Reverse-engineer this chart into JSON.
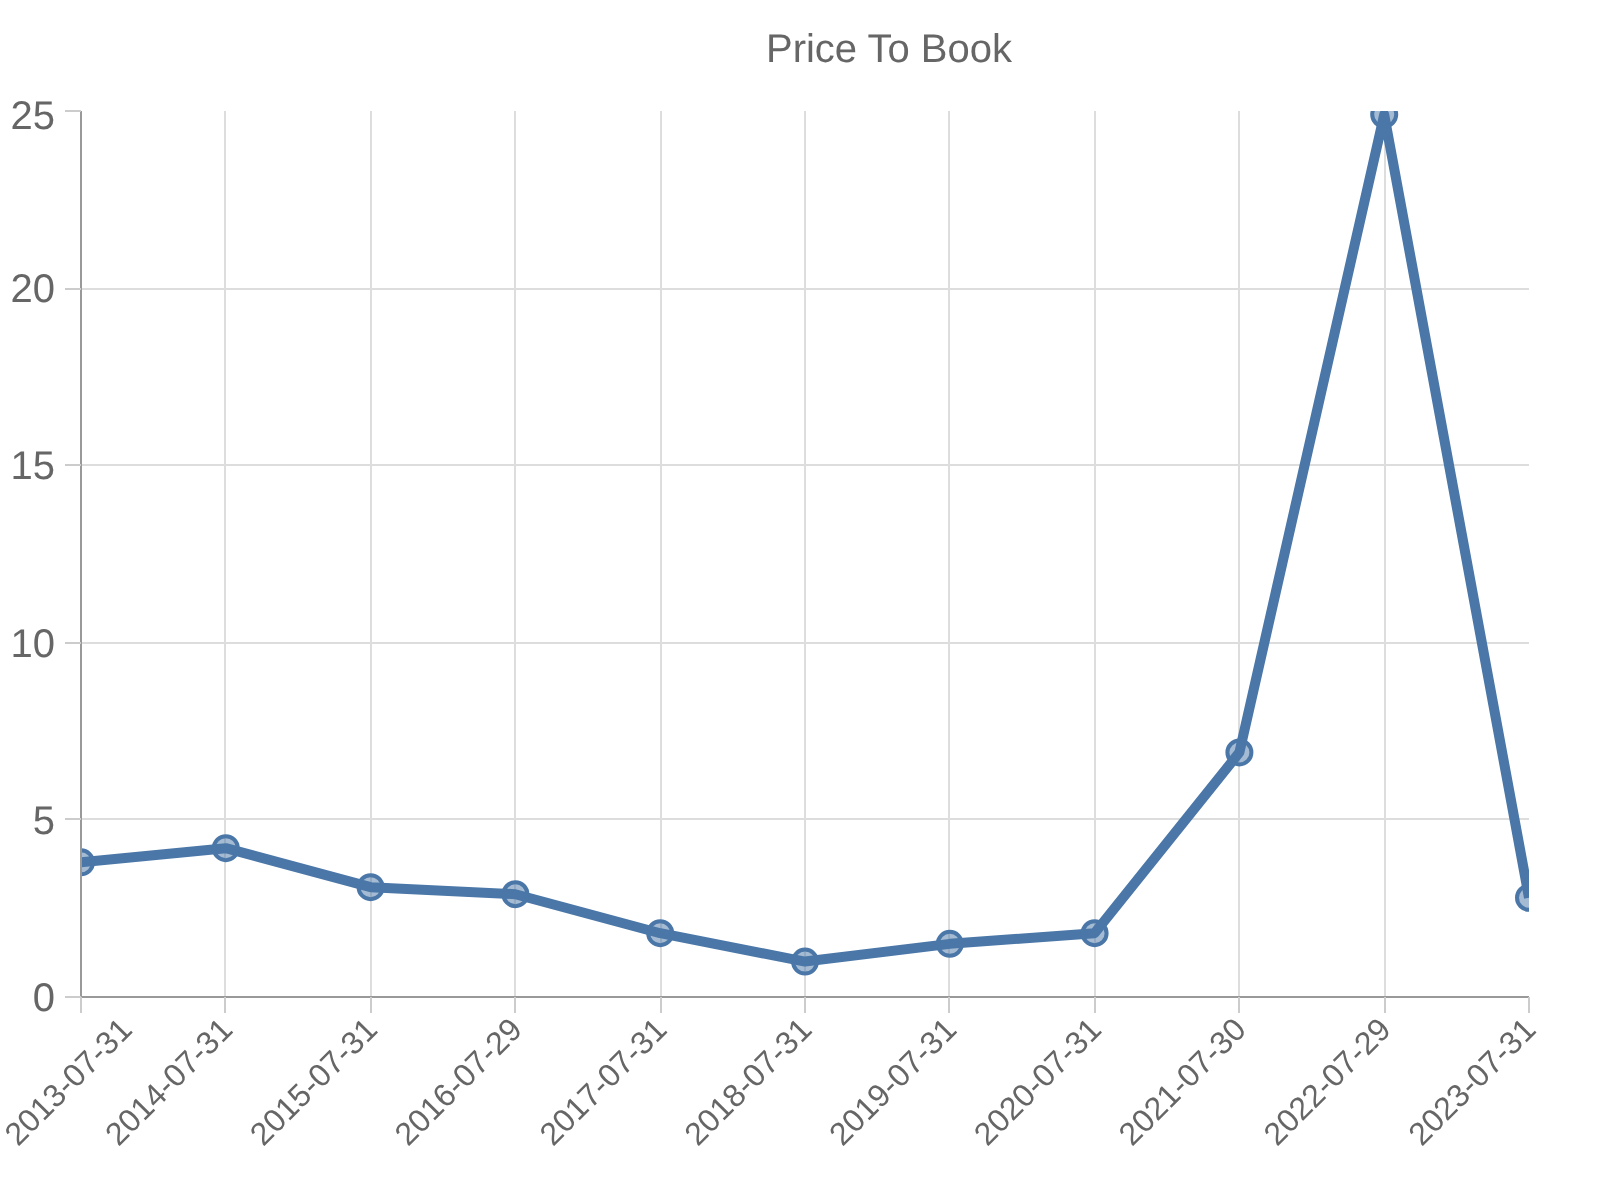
{
  "chart_data": {
    "type": "line",
    "categories": [
      "2013-07-31",
      "2014-07-31",
      "2015-07-31",
      "2016-07-29",
      "2017-07-31",
      "2018-07-31",
      "2019-07-31",
      "2020-07-31",
      "2021-07-30",
      "2022-07-29",
      "2023-07-31"
    ],
    "series": [
      {
        "name": "Price To Book",
        "color": "#4a77a8",
        "values": [
          3.8,
          4.2,
          3.1,
          2.9,
          1.8,
          1.0,
          1.5,
          1.8,
          6.9,
          24.9,
          2.8
        ]
      }
    ],
    "ylim": [
      0,
      25
    ],
    "yticks": [
      0,
      5,
      10,
      15,
      20,
      25
    ],
    "grid": true,
    "legend": "top",
    "marker": "circle",
    "line_style": "solid"
  }
}
